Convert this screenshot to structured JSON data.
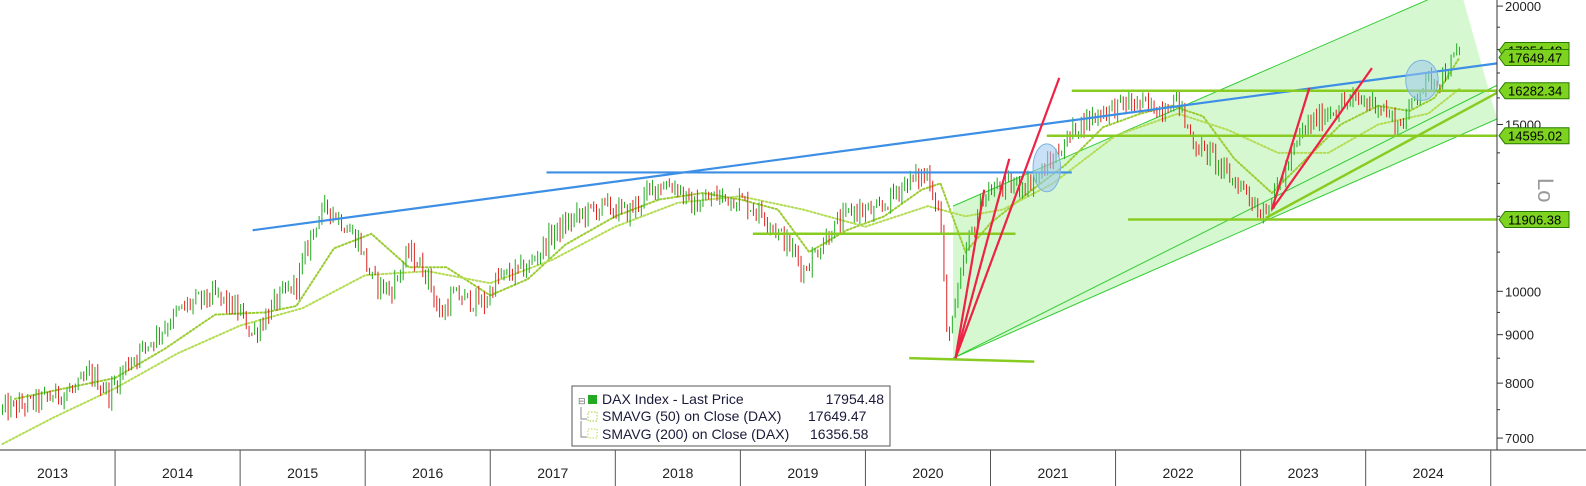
{
  "chart_data": {
    "type": "line",
    "title": "",
    "scale": "log",
    "scale_label": "Lo",
    "ylim": [
      6800,
      20200
    ],
    "y_ticks": [
      7000,
      8000,
      9000,
      10000,
      15000,
      20000
    ],
    "x_range": [
      2012.58,
      2024.55
    ],
    "x_ticks": [
      {
        "label": "2013",
        "x": 2013.0
      },
      {
        "label": "2014",
        "x": 2014.0
      },
      {
        "label": "2015",
        "x": 2015.0
      },
      {
        "label": "2016",
        "x": 2016.0
      },
      {
        "label": "2017",
        "x": 2017.0
      },
      {
        "label": "2018",
        "x": 2018.0
      },
      {
        "label": "2019",
        "x": 2019.0
      },
      {
        "label": "2020",
        "x": 2020.0
      },
      {
        "label": "2021",
        "x": 2021.0
      },
      {
        "label": "2022",
        "x": 2022.0
      },
      {
        "label": "2023",
        "x": 2023.0
      },
      {
        "label": "2024",
        "x": 2024.0
      }
    ],
    "year_separators": [
      2013.5,
      2014.5,
      2015.5,
      2016.5,
      2017.5,
      2018.5,
      2019.5,
      2020.5,
      2021.5,
      2022.5,
      2023.5,
      2024.5
    ],
    "series": [
      {
        "name": "DAX Index - Last Price",
        "value_label": "17954.48",
        "color": "#22aa22",
        "down_color": "#dd2222",
        "x": [
          2012.6,
          2012.8,
          2013.0,
          2013.2,
          2013.3,
          2013.45,
          2013.6,
          2013.8,
          2014.0,
          2014.1,
          2014.3,
          2014.5,
          2014.6,
          2014.8,
          2014.95,
          2015.1,
          2015.2,
          2015.3,
          2015.45,
          2015.55,
          2015.7,
          2015.85,
          2016.0,
          2016.1,
          2016.2,
          2016.45,
          2016.55,
          2016.8,
          2017.0,
          2017.2,
          2017.4,
          2017.6,
          2017.85,
          2018.0,
          2018.1,
          2018.3,
          2018.5,
          2018.7,
          2018.95,
          2019.0,
          2019.2,
          2019.4,
          2019.6,
          2019.8,
          2020.0,
          2020.1,
          2020.15,
          2020.22,
          2020.3,
          2020.45,
          2020.6,
          2020.8,
          2020.9,
          2021.0,
          2021.2,
          2021.4,
          2021.6,
          2021.85,
          2022.0,
          2022.05,
          2022.15,
          2022.25,
          2022.4,
          2022.55,
          2022.65,
          2022.75,
          2022.9,
          2023.0,
          2023.2,
          2023.4,
          2023.6,
          2023.75,
          2023.82,
          2023.9,
          2024.0,
          2024.1,
          2024.2,
          2024.25
        ],
        "y": [
          7500,
          7600,
          7750,
          7900,
          8200,
          7800,
          8400,
          8900,
          9500,
          9700,
          9900,
          9500,
          9000,
          9800,
          10200,
          11800,
          12300,
          11900,
          11300,
          10300,
          10000,
          11000,
          10400,
          9400,
          9900,
          9700,
          10300,
          10600,
          11500,
          12000,
          12300,
          12100,
          13000,
          12900,
          12300,
          12600,
          12500,
          12000,
          10900,
          10500,
          11500,
          12200,
          12100,
          13000,
          13300,
          12000,
          9000,
          9600,
          11000,
          12700,
          12900,
          13000,
          13300,
          13800,
          15000,
          15500,
          15800,
          15600,
          16000,
          15100,
          14200,
          14000,
          13200,
          12800,
          12100,
          12500,
          13800,
          14800,
          15500,
          15900,
          15800,
          15000,
          15200,
          16200,
          16700,
          16800,
          17500,
          17954.48
        ]
      },
      {
        "name": "SMAVG (50)  on Close (DAX)",
        "value_label": "17649.47",
        "color": "#9ccc33",
        "x": [
          2012.7,
          2013.1,
          2013.5,
          2013.9,
          2014.3,
          2014.7,
          2014.95,
          2015.25,
          2015.55,
          2015.85,
          2016.15,
          2016.5,
          2016.8,
          2017.1,
          2017.5,
          2017.85,
          2018.2,
          2018.5,
          2018.8,
          2019.05,
          2019.35,
          2019.65,
          2019.95,
          2020.1,
          2020.3,
          2020.5,
          2020.8,
          2021.1,
          2021.4,
          2021.7,
          2021.95,
          2022.2,
          2022.45,
          2022.75,
          2023.0,
          2023.3,
          2023.6,
          2023.85,
          2024.05,
          2024.25
        ],
        "y": [
          7700,
          7900,
          8100,
          8700,
          9450,
          9500,
          9650,
          11100,
          11500,
          10600,
          10600,
          9900,
          10300,
          11200,
          12000,
          12500,
          12700,
          12500,
          12200,
          11000,
          11600,
          12000,
          12800,
          13000,
          11000,
          11800,
          12700,
          13600,
          14900,
          15400,
          15700,
          15300,
          13800,
          12700,
          13700,
          15000,
          15700,
          15500,
          16000,
          17649.47
        ]
      },
      {
        "name": "SMAVG (200)  on Close (DAX)",
        "value_label": "16356.58",
        "color": "#b4dc55",
        "x": [
          2012.6,
          2013.0,
          2013.5,
          2014.0,
          2014.5,
          2015.0,
          2015.5,
          2016.0,
          2016.5,
          2017.0,
          2017.5,
          2018.0,
          2018.5,
          2019.0,
          2019.5,
          2020.0,
          2020.3,
          2020.6,
          2021.0,
          2021.5,
          2022.0,
          2022.4,
          2022.8,
          2023.2,
          2023.6,
          2024.0,
          2024.25
        ],
        "y": [
          6900,
          7350,
          7900,
          8600,
          9200,
          9600,
          10400,
          10500,
          10200,
          10800,
          11700,
          12400,
          12600,
          12200,
          11700,
          12300,
          12000,
          12200,
          13000,
          14600,
          15400,
          14800,
          14000,
          14000,
          15000,
          15400,
          16356.58
        ]
      }
    ],
    "price_labels": [
      {
        "value": 17954.48,
        "label": "17954.48",
        "bg": "#7ed321",
        "border": "#2a7a00"
      },
      {
        "value": 17649.47,
        "label": "17649.47",
        "bg": "#7ed321",
        "border": "#2a7a00"
      },
      {
        "value": 16282.34,
        "label": "16282.34",
        "bg": "#7ed321",
        "border": "#2a7a00"
      },
      {
        "value": 14595.02,
        "label": "14595.02",
        "bg": "#7ed321",
        "border": "#2a7a00"
      },
      {
        "value": 11906.38,
        "label": "11906.38",
        "bg": "#7ed321",
        "border": "#2a7a00"
      }
    ],
    "annotations": {
      "channel": {
        "fill": "#c8f5c0",
        "stroke": "#33cc33",
        "lower": {
          "x1": 2020.2,
          "y1": 8500,
          "x2": 2024.55,
          "y2": 15200
        },
        "upper": {
          "x1": 2020.2,
          "y1": 12300,
          "x2": 2024.25,
          "y2": 21000
        },
        "mid": {
          "x1": 2020.2,
          "y1": 8500,
          "x2": 2024.55,
          "y2": 16500
        }
      },
      "blue_trendlines": [
        {
          "x1": 2014.6,
          "y1": 11600,
          "x2": 2024.55,
          "y2": 17400,
          "color": "#3d8fe6"
        },
        {
          "x1": 2016.95,
          "y1": 13350,
          "x2": 2021.15,
          "y2": 13350,
          "color": "#3d8fe6"
        }
      ],
      "green_levels": [
        {
          "x1": 2021.15,
          "x2": 2024.55,
          "y": 16282.34,
          "color": "#88cc22"
        },
        {
          "x1": 2020.95,
          "x2": 2024.55,
          "y": 14595.02,
          "color": "#88cc22"
        },
        {
          "x1": 2021.6,
          "x2": 2024.55,
          "y": 11906.38,
          "color": "#88cc22"
        },
        {
          "x1": 2018.6,
          "x2": 2020.7,
          "y": 11500,
          "color": "#88cc22"
        },
        {
          "x1": 2019.85,
          "x2": 2020.85,
          "y": 8500,
          "color": "#88cc22",
          "y2": 8430
        }
      ],
      "green_trend": [
        {
          "x1": 2022.7,
          "y1": 11950,
          "x2": 2024.55,
          "y2": 16200,
          "color": "#88cc22"
        }
      ],
      "red_lines": [
        {
          "x1": 2020.22,
          "y1": 8500,
          "x2": 2020.45,
          "y2": 12800
        },
        {
          "x1": 2020.22,
          "y1": 8500,
          "x2": 2020.65,
          "y2": 13800
        },
        {
          "x1": 2020.22,
          "y1": 8500,
          "x2": 2021.05,
          "y2": 16800
        },
        {
          "x1": 2022.75,
          "y1": 12200,
          "x2": 2023.05,
          "y2": 16400
        },
        {
          "x1": 2022.75,
          "y1": 12200,
          "x2": 2023.55,
          "y2": 17200
        }
      ],
      "ellipses": [
        {
          "x": 2020.95,
          "y": 13500,
          "rx_years": 0.11,
          "ry_ratio": 1.06
        },
        {
          "x": 2023.95,
          "y": 16700,
          "rx_years": 0.13,
          "ry_ratio": 1.05
        }
      ]
    }
  },
  "legend": {
    "items": [
      {
        "label": "DAX Index - Last Price",
        "value": "17954.48"
      },
      {
        "label": "SMAVG (50)  on Close (DAX)",
        "value": "17649.47"
      },
      {
        "label": "SMAVG (200)  on Close (DAX)",
        "value": "16356.58"
      }
    ]
  }
}
